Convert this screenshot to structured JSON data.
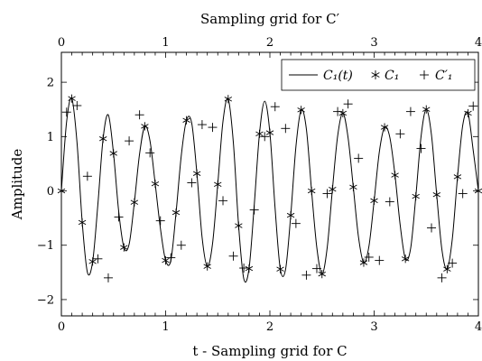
{
  "chart_data": {
    "type": "line",
    "top_title": "Sampling grid for C′",
    "xlabel": "t - Sampling grid for C",
    "ylabel": "Amplitude",
    "xlim": [
      0,
      4
    ],
    "ylim": [
      -2.3,
      2.55
    ],
    "x_ticks": [
      "0",
      "1",
      "2",
      "3",
      "4"
    ],
    "y_ticks": [
      "−2",
      "−1",
      "0",
      "1",
      "2"
    ],
    "x_tick_values": [
      0,
      1,
      2,
      3,
      4
    ],
    "y_tick_values": [
      -2,
      -1,
      0,
      1,
      2
    ],
    "grid": false,
    "legend_position": "top-right",
    "series": [
      {
        "name": "C₁(t)",
        "style": "line",
        "x": [
          0,
          0.05,
          0.1,
          0.15,
          0.2,
          0.25,
          0.3,
          0.35,
          0.4,
          0.45,
          0.5,
          0.55,
          0.6,
          0.65,
          0.7,
          0.75,
          0.8,
          0.85,
          0.9,
          0.95,
          1.0,
          1.05,
          1.1,
          1.15,
          1.2,
          1.25,
          1.3,
          1.35,
          1.4,
          1.45,
          1.5,
          1.55,
          1.6,
          1.65,
          1.7,
          1.75,
          1.8,
          1.85,
          1.9,
          1.95,
          2.0,
          2.05,
          2.1,
          2.15,
          2.2,
          2.25,
          2.3,
          2.35,
          2.4,
          2.45,
          2.5,
          2.55,
          2.6,
          2.65,
          2.7,
          2.75,
          2.8,
          2.85,
          2.9,
          2.95,
          3.0,
          3.05,
          3.1,
          3.15,
          3.2,
          3.25,
          3.3,
          3.35,
          3.4,
          3.45,
          3.5,
          3.55,
          3.6,
          3.65,
          3.7,
          3.75,
          3.8,
          3.85,
          3.9,
          3.95,
          4.0
        ],
        "values": [
          0,
          1.27,
          1.7,
          0.89,
          -0.58,
          -1.5,
          -1.3,
          -0.25,
          0.96,
          1.4,
          0.69,
          -0.38,
          -1.04,
          -0.98,
          -0.21,
          0.68,
          1.19,
          0.92,
          0.13,
          -0.69,
          -1.28,
          -1.28,
          -0.4,
          0.65,
          1.3,
          1.25,
          0.32,
          -0.86,
          -1.39,
          -0.97,
          0.12,
          1.28,
          1.69,
          0.88,
          -0.64,
          -1.62,
          -1.43,
          -0.26,
          1.05,
          1.65,
          1.07,
          -0.32,
          -1.44,
          -1.45,
          -0.45,
          0.82,
          1.49,
          1.14,
          0.0,
          -1.04,
          -1.53,
          -1.04,
          0.03,
          1.01,
          1.43,
          0.98,
          0.07,
          -0.85,
          -1.32,
          -1.02,
          -0.18,
          0.72,
          1.17,
          0.99,
          0.29,
          -0.63,
          -1.25,
          -1.06,
          -0.1,
          1.0,
          1.5,
          1.03,
          -0.07,
          -1.08,
          -1.44,
          -0.88,
          0.26,
          1.21,
          1.43,
          0.75,
          0
        ]
      },
      {
        "name": "C₁",
        "style": "markers-star",
        "x": [
          0,
          0.1,
          0.2,
          0.3,
          0.4,
          0.5,
          0.6,
          0.7,
          0.8,
          0.9,
          1.0,
          1.1,
          1.2,
          1.3,
          1.4,
          1.5,
          1.6,
          1.7,
          1.8,
          1.9,
          2.0,
          2.1,
          2.2,
          2.3,
          2.4,
          2.5,
          2.6,
          2.7,
          2.8,
          2.9,
          3.0,
          3.1,
          3.2,
          3.3,
          3.4,
          3.5,
          3.6,
          3.7,
          3.8,
          3.9,
          4.0
        ],
        "values": [
          0,
          1.7,
          -0.58,
          -1.3,
          0.96,
          0.69,
          -1.04,
          -0.21,
          1.19,
          0.13,
          -1.28,
          -0.4,
          1.3,
          0.32,
          -1.39,
          0.12,
          1.69,
          -0.64,
          -1.43,
          1.05,
          1.07,
          -1.44,
          -0.45,
          1.49,
          0.0,
          -1.53,
          0.03,
          1.43,
          0.07,
          -1.32,
          -0.18,
          1.17,
          0.29,
          -1.25,
          -0.1,
          1.5,
          -0.07,
          -1.44,
          0.26,
          1.43,
          0
        ]
      },
      {
        "name": "C′₁",
        "style": "markers-plus",
        "x": [
          0.05,
          0.15,
          0.25,
          0.35,
          0.45,
          0.55,
          0.65,
          0.75,
          0.85,
          0.95,
          1.05,
          1.15,
          1.25,
          1.35,
          1.45,
          1.55,
          1.65,
          1.75,
          1.85,
          1.95,
          2.05,
          2.15,
          2.25,
          2.35,
          2.45,
          2.55,
          2.65,
          2.75,
          2.85,
          2.95,
          3.05,
          3.15,
          3.25,
          3.35,
          3.45,
          3.55,
          3.65,
          3.75,
          3.85,
          3.95
        ],
        "values": [
          1.45,
          1.57,
          0.27,
          -1.25,
          -1.6,
          -0.48,
          0.92,
          1.4,
          0.7,
          -0.55,
          -1.23,
          -1.0,
          0.15,
          1.22,
          1.17,
          -0.18,
          -1.2,
          -1.42,
          -0.35,
          1.0,
          1.55,
          1.15,
          -0.6,
          -1.55,
          -1.43,
          -0.05,
          1.46,
          1.6,
          0.6,
          -1.22,
          -1.28,
          -0.2,
          1.05,
          1.46,
          0.78,
          -0.68,
          -1.6,
          -1.33,
          -0.05,
          1.56
        ]
      }
    ]
  }
}
